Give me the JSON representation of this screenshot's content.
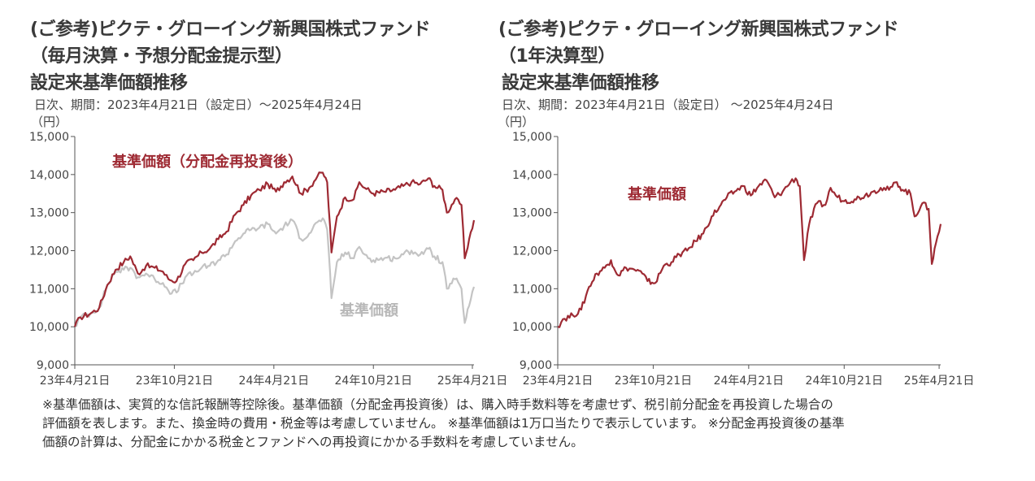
{
  "left": {
    "title_line1": "(ご参考)ピクテ・グローイング新興国株式ファンド",
    "title_line2": "（毎月決算・予想分配金提示型）",
    "title_line3": "設定来基準価額推移",
    "subtitle": "日次、期間：2023年4月21日（設定日）～2025年4月24日",
    "unit": "（円）"
  },
  "right": {
    "title_line1": "(ご参考)ピクテ・グローイング新興国株式ファンド",
    "title_line2": "（1年決算型）",
    "title_line3": "設定来基準価額推移",
    "subtitle": "日次、期間：2023年4月21日（設定日） ～2025年4月24日",
    "unit": "（円）"
  },
  "notes": [
    "※基準価額は、実質的な信託報酬等控除後。基準価額（分配金再投資後）は、購入時手数料等を考慮せず、税引前分配金を再投資した場合の",
    "評価額を表します。また、換金時の費用・税金等は考慮していません。 ※基準価額は1万口当たりで表示しています。 ※分配金再投資後の基準",
    "価額の計算は、分配金にかかる税金とファンドへの再投資にかかる手数料を考慮していません。"
  ],
  "colors": {
    "reinvested": "#9e2a33",
    "nav": "#c4c4c4",
    "axis": "#555555"
  },
  "chart_data": [
    {
      "type": "line",
      "ylabel": "（円）",
      "ylim": [
        9000,
        15000
      ],
      "yticks": [
        "9,000",
        "10,000",
        "11,000",
        "12,000",
        "13,000",
        "14,000",
        "15,000"
      ],
      "xlim": [
        "2023-04-21",
        "2025-04-24"
      ],
      "xticks": [
        {
          "date": "2023-04-21",
          "label": "23年4月21日"
        },
        {
          "date": "2023-10-21",
          "label": "23年10月21日"
        },
        {
          "date": "2024-04-21",
          "label": "24年4月21日"
        },
        {
          "date": "2024-10-21",
          "label": "24年10月21日"
        },
        {
          "date": "2025-04-21",
          "label": "25年4月21日"
        }
      ],
      "series": [
        {
          "name": "基準価額（分配金再投資後）",
          "color": "#9e2a33",
          "points": [
            [
              "2023-04-21",
              10000
            ],
            [
              "2023-05-01",
              10250
            ],
            [
              "2023-05-20",
              10350
            ],
            [
              "2023-06-05",
              10500
            ],
            [
              "2023-06-20",
              11100
            ],
            [
              "2023-07-05",
              11500
            ],
            [
              "2023-07-20",
              11700
            ],
            [
              "2023-08-01",
              11850
            ],
            [
              "2023-08-15",
              11400
            ],
            [
              "2023-08-30",
              11600
            ],
            [
              "2023-09-15",
              11550
            ],
            [
              "2023-09-30",
              11450
            ],
            [
              "2023-10-10",
              11250
            ],
            [
              "2023-10-25",
              11200
            ],
            [
              "2023-11-10",
              11650
            ],
            [
              "2023-11-25",
              11750
            ],
            [
              "2023-12-10",
              11950
            ],
            [
              "2023-12-25",
              12050
            ],
            [
              "2024-01-10",
              12300
            ],
            [
              "2024-01-25",
              12500
            ],
            [
              "2024-02-10",
              12950
            ],
            [
              "2024-02-25",
              13200
            ],
            [
              "2024-03-10",
              13450
            ],
            [
              "2024-03-25",
              13600
            ],
            [
              "2024-04-10",
              13750
            ],
            [
              "2024-04-25",
              13550
            ],
            [
              "2024-05-10",
              13800
            ],
            [
              "2024-05-25",
              13950
            ],
            [
              "2024-06-10",
              13500
            ],
            [
              "2024-06-25",
              13650
            ],
            [
              "2024-07-10",
              13950
            ],
            [
              "2024-07-20",
              14050
            ],
            [
              "2024-07-28",
              13800
            ],
            [
              "2024-08-05",
              11950
            ],
            [
              "2024-08-15",
              12900
            ],
            [
              "2024-08-30",
              13400
            ],
            [
              "2024-09-15",
              13350
            ],
            [
              "2024-09-25",
              13800
            ],
            [
              "2024-10-05",
              13650
            ],
            [
              "2024-10-21",
              13500
            ],
            [
              "2024-11-10",
              13550
            ],
            [
              "2024-11-30",
              13600
            ],
            [
              "2024-12-15",
              13700
            ],
            [
              "2024-12-30",
              13800
            ],
            [
              "2025-01-15",
              13750
            ],
            [
              "2025-01-30",
              13900
            ],
            [
              "2025-02-10",
              13700
            ],
            [
              "2025-02-25",
              13600
            ],
            [
              "2025-03-05",
              13000
            ],
            [
              "2025-03-20",
              13350
            ],
            [
              "2025-04-01",
              13200
            ],
            [
              "2025-04-07",
              11800
            ],
            [
              "2025-04-15",
              12300
            ],
            [
              "2025-04-24",
              12800
            ]
          ]
        },
        {
          "name": "基準価額",
          "color": "#c4c4c4",
          "points": [
            [
              "2023-04-21",
              10000
            ],
            [
              "2023-05-01",
              10250
            ],
            [
              "2023-05-20",
              10350
            ],
            [
              "2023-06-05",
              10500
            ],
            [
              "2023-06-20",
              11100
            ],
            [
              "2023-07-05",
              11450
            ],
            [
              "2023-07-20",
              11500
            ],
            [
              "2023-08-01",
              11550
            ],
            [
              "2023-08-15",
              11300
            ],
            [
              "2023-08-30",
              11400
            ],
            [
              "2023-09-15",
              11250
            ],
            [
              "2023-09-30",
              11150
            ],
            [
              "2023-10-10",
              10950
            ],
            [
              "2023-10-25",
              10900
            ],
            [
              "2023-11-10",
              11300
            ],
            [
              "2023-11-25",
              11400
            ],
            [
              "2023-12-10",
              11550
            ],
            [
              "2023-12-25",
              11600
            ],
            [
              "2024-01-10",
              11750
            ],
            [
              "2024-01-25",
              11900
            ],
            [
              "2024-02-10",
              12250
            ],
            [
              "2024-02-25",
              12450
            ],
            [
              "2024-03-10",
              12550
            ],
            [
              "2024-03-25",
              12600
            ],
            [
              "2024-04-10",
              12700
            ],
            [
              "2024-04-25",
              12450
            ],
            [
              "2024-05-10",
              12650
            ],
            [
              "2024-05-25",
              12800
            ],
            [
              "2024-06-10",
              12300
            ],
            [
              "2024-06-25",
              12450
            ],
            [
              "2024-07-10",
              12750
            ],
            [
              "2024-07-20",
              12850
            ],
            [
              "2024-07-28",
              12550
            ],
            [
              "2024-08-05",
              10750
            ],
            [
              "2024-08-15",
              11700
            ],
            [
              "2024-08-30",
              11950
            ],
            [
              "2024-09-15",
              11800
            ],
            [
              "2024-09-25",
              12100
            ],
            [
              "2024-10-05",
              11900
            ],
            [
              "2024-10-21",
              11750
            ],
            [
              "2024-11-10",
              11800
            ],
            [
              "2024-11-30",
              11800
            ],
            [
              "2024-12-15",
              11900
            ],
            [
              "2024-12-30",
              12000
            ],
            [
              "2025-01-15",
              11900
            ],
            [
              "2025-01-30",
              12050
            ],
            [
              "2025-02-10",
              11850
            ],
            [
              "2025-02-25",
              11700
            ],
            [
              "2025-03-05",
              11000
            ],
            [
              "2025-03-20",
              11250
            ],
            [
              "2025-04-01",
              11000
            ],
            [
              "2025-04-07",
              10100
            ],
            [
              "2025-04-15",
              10550
            ],
            [
              "2025-04-24",
              11050
            ]
          ]
        }
      ]
    },
    {
      "type": "line",
      "ylabel": "（円）",
      "ylim": [
        9000,
        15000
      ],
      "yticks": [
        "9,000",
        "10,000",
        "11,000",
        "12,000",
        "13,000",
        "14,000",
        "15,000"
      ],
      "xlim": [
        "2023-04-21",
        "2025-04-24"
      ],
      "xticks": [
        {
          "date": "2023-04-21",
          "label": "23年4月21日"
        },
        {
          "date": "2023-10-21",
          "label": "23年10月21日"
        },
        {
          "date": "2024-04-21",
          "label": "24年4月21日"
        },
        {
          "date": "2024-10-21",
          "label": "24年10月21日"
        },
        {
          "date": "2025-04-21",
          "label": "25年4月21日"
        }
      ],
      "series": [
        {
          "name": "基準価額",
          "color": "#9e2a33",
          "points": [
            [
              "2023-04-21",
              10000
            ],
            [
              "2023-05-01",
              10200
            ],
            [
              "2023-05-20",
              10300
            ],
            [
              "2023-06-05",
              10450
            ],
            [
              "2023-06-20",
              11050
            ],
            [
              "2023-07-05",
              11400
            ],
            [
              "2023-07-20",
              11550
            ],
            [
              "2023-08-01",
              11750
            ],
            [
              "2023-08-15",
              11350
            ],
            [
              "2023-08-30",
              11550
            ],
            [
              "2023-09-15",
              11500
            ],
            [
              "2023-09-30",
              11400
            ],
            [
              "2023-10-10",
              11200
            ],
            [
              "2023-10-25",
              11150
            ],
            [
              "2023-11-10",
              11600
            ],
            [
              "2023-11-25",
              11700
            ],
            [
              "2023-12-10",
              11900
            ],
            [
              "2023-12-25",
              12000
            ],
            [
              "2024-01-10",
              12250
            ],
            [
              "2024-01-25",
              12450
            ],
            [
              "2024-02-10",
              12900
            ],
            [
              "2024-02-25",
              13150
            ],
            [
              "2024-03-10",
              13400
            ],
            [
              "2024-03-25",
              13550
            ],
            [
              "2024-04-10",
              13700
            ],
            [
              "2024-04-25",
              13450
            ],
            [
              "2024-05-10",
              13700
            ],
            [
              "2024-05-25",
              13850
            ],
            [
              "2024-06-10",
              13400
            ],
            [
              "2024-06-25",
              13550
            ],
            [
              "2024-07-10",
              13800
            ],
            [
              "2024-07-20",
              13900
            ],
            [
              "2024-07-28",
              13700
            ],
            [
              "2024-08-05",
              11750
            ],
            [
              "2024-08-15",
              12700
            ],
            [
              "2024-08-30",
              13250
            ],
            [
              "2024-09-15",
              13200
            ],
            [
              "2024-09-25",
              13650
            ],
            [
              "2024-10-05",
              13450
            ],
            [
              "2024-10-21",
              13300
            ],
            [
              "2024-11-10",
              13350
            ],
            [
              "2024-11-30",
              13450
            ],
            [
              "2024-12-15",
              13550
            ],
            [
              "2024-12-30",
              13650
            ],
            [
              "2025-01-15",
              13600
            ],
            [
              "2025-01-30",
              13800
            ],
            [
              "2025-02-10",
              13600
            ],
            [
              "2025-02-25",
              13500
            ],
            [
              "2025-03-05",
              12900
            ],
            [
              "2025-03-20",
              13250
            ],
            [
              "2025-04-01",
              13100
            ],
            [
              "2025-04-07",
              11650
            ],
            [
              "2025-04-15",
              12200
            ],
            [
              "2025-04-24",
              12700
            ]
          ]
        }
      ]
    }
  ]
}
